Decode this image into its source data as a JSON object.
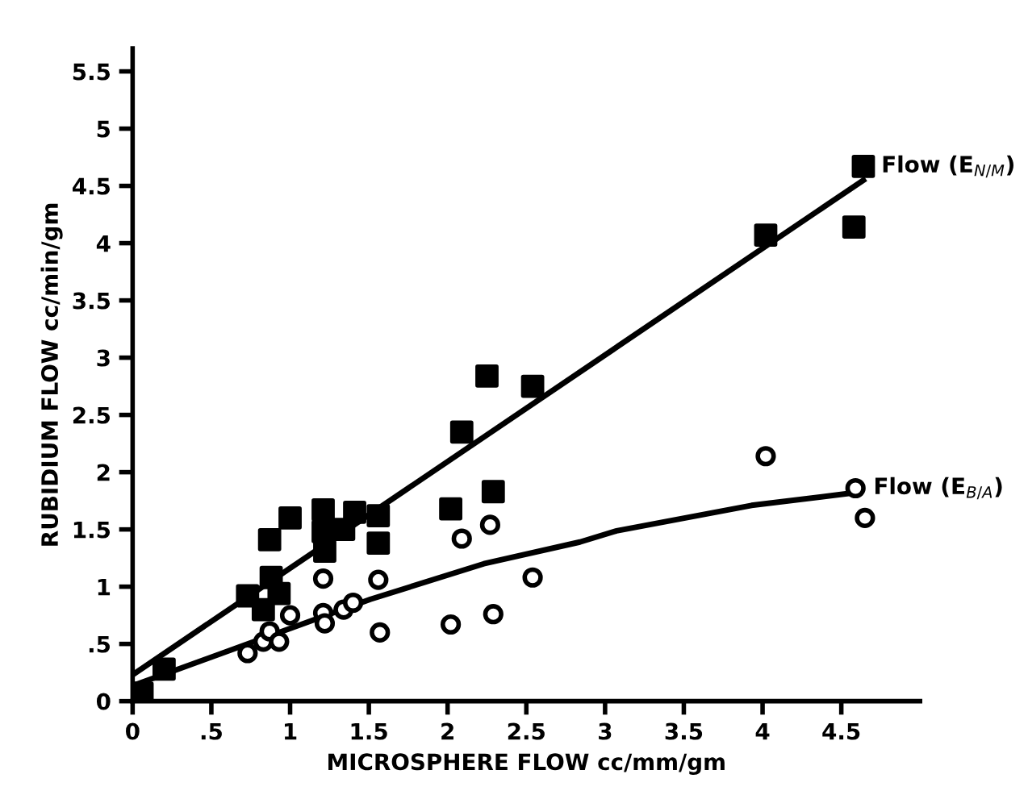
{
  "chart_data": {
    "type": "scatter",
    "xlabel": "MICROSPHERE FLOW cc/mm/gm",
    "ylabel": "RUBIDIUM FLOW cc/min/gm",
    "xlim": [
      0,
      5
    ],
    "ylim": [
      0,
      5.7
    ],
    "xticks": [
      0,
      {
        "value": 0.5,
        "label": ".5"
      },
      1,
      1.5,
      2,
      2.5,
      3,
      3.5,
      4,
      4.5
    ],
    "yticks": [
      0,
      {
        "value": 0.5,
        "label": ".5"
      },
      1,
      1.5,
      2,
      2.5,
      3,
      3.5,
      4,
      4.5,
      5,
      5.5
    ],
    "grid": false,
    "legend": false,
    "series": [
      {
        "name": "Flow (E$_{N/M}$)",
        "marker": "square",
        "color": "#000000",
        "x": [
          0.06,
          0.2,
          0.73,
          0.83,
          0.87,
          0.88,
          0.93,
          1.0,
          1.21,
          1.21,
          1.22,
          1.34,
          1.41,
          1.56,
          1.56,
          2.02,
          2.09,
          2.25,
          2.29,
          2.54,
          4.02,
          4.58,
          4.64
        ],
        "values": [
          0.07,
          0.28,
          0.92,
          0.8,
          1.41,
          1.08,
          0.94,
          1.6,
          1.67,
          1.48,
          1.31,
          1.5,
          1.65,
          1.62,
          1.38,
          1.68,
          2.35,
          2.84,
          1.83,
          2.75,
          4.07,
          4.14,
          4.67
        ]
      },
      {
        "name": "Flow (E$_{B/A}$)",
        "marker": "circle",
        "color": "#000000",
        "x": [
          0.73,
          0.83,
          0.87,
          0.93,
          1.0,
          1.21,
          1.21,
          1.22,
          1.34,
          1.4,
          1.56,
          1.57,
          2.02,
          2.09,
          2.27,
          2.29,
          2.54,
          4.02,
          4.65,
          4.59
        ],
        "values": [
          0.42,
          0.52,
          0.61,
          0.52,
          0.75,
          1.07,
          0.77,
          0.68,
          0.8,
          0.86,
          1.06,
          0.6,
          0.67,
          1.42,
          1.54,
          0.76,
          1.08,
          2.14,
          1.6,
          1.86
        ]
      },
      {
        "type": "line",
        "color": "#000000",
        "line_style": "solid",
        "x": [
          0.01,
          4.64
        ],
        "values": [
          0.24,
          4.55
        ]
      },
      {
        "type": "line",
        "color": "#000000",
        "line_style": "solid",
        "x": [
          0.01,
          1.51,
          2.23,
          2.84,
          3.08,
          3.93,
          4.58
        ],
        "values": [
          0.14,
          0.89,
          1.2,
          1.39,
          1.49,
          1.71,
          1.82
        ]
      }
    ]
  }
}
